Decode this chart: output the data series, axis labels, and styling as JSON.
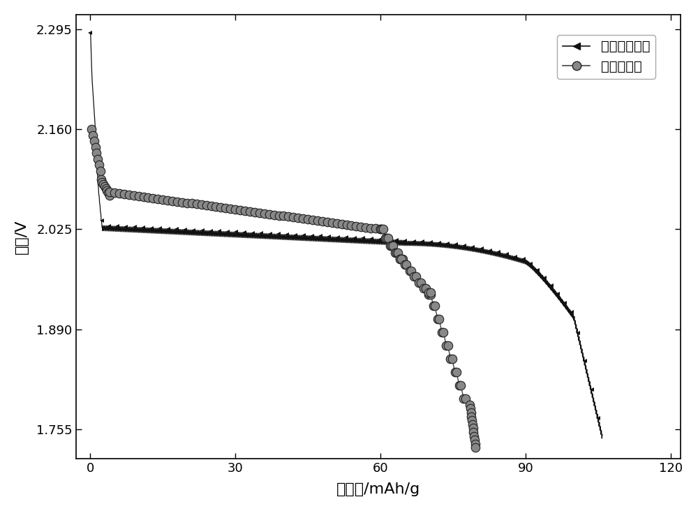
{
  "xlabel": "比容量/mAh/g",
  "ylabel": "电压/V",
  "xlim": [
    -3,
    122
  ],
  "ylim": [
    1.715,
    2.315
  ],
  "yticks": [
    1.755,
    1.89,
    2.025,
    2.16,
    2.295
  ],
  "xticks": [
    0,
    30,
    60,
    90,
    120
  ],
  "legend1_label": "壳聚糖为碳源",
  "legend2_label": "碳黑为碳源",
  "bg_color": "#ffffff",
  "line1_color": "#111111",
  "line2_color": "#444444",
  "marker2_face": "#888888",
  "marker2_edge": "#222222",
  "xlabel_fontsize": 16,
  "ylabel_fontsize": 16,
  "tick_labelsize": 13,
  "legend_fontsize": 14
}
